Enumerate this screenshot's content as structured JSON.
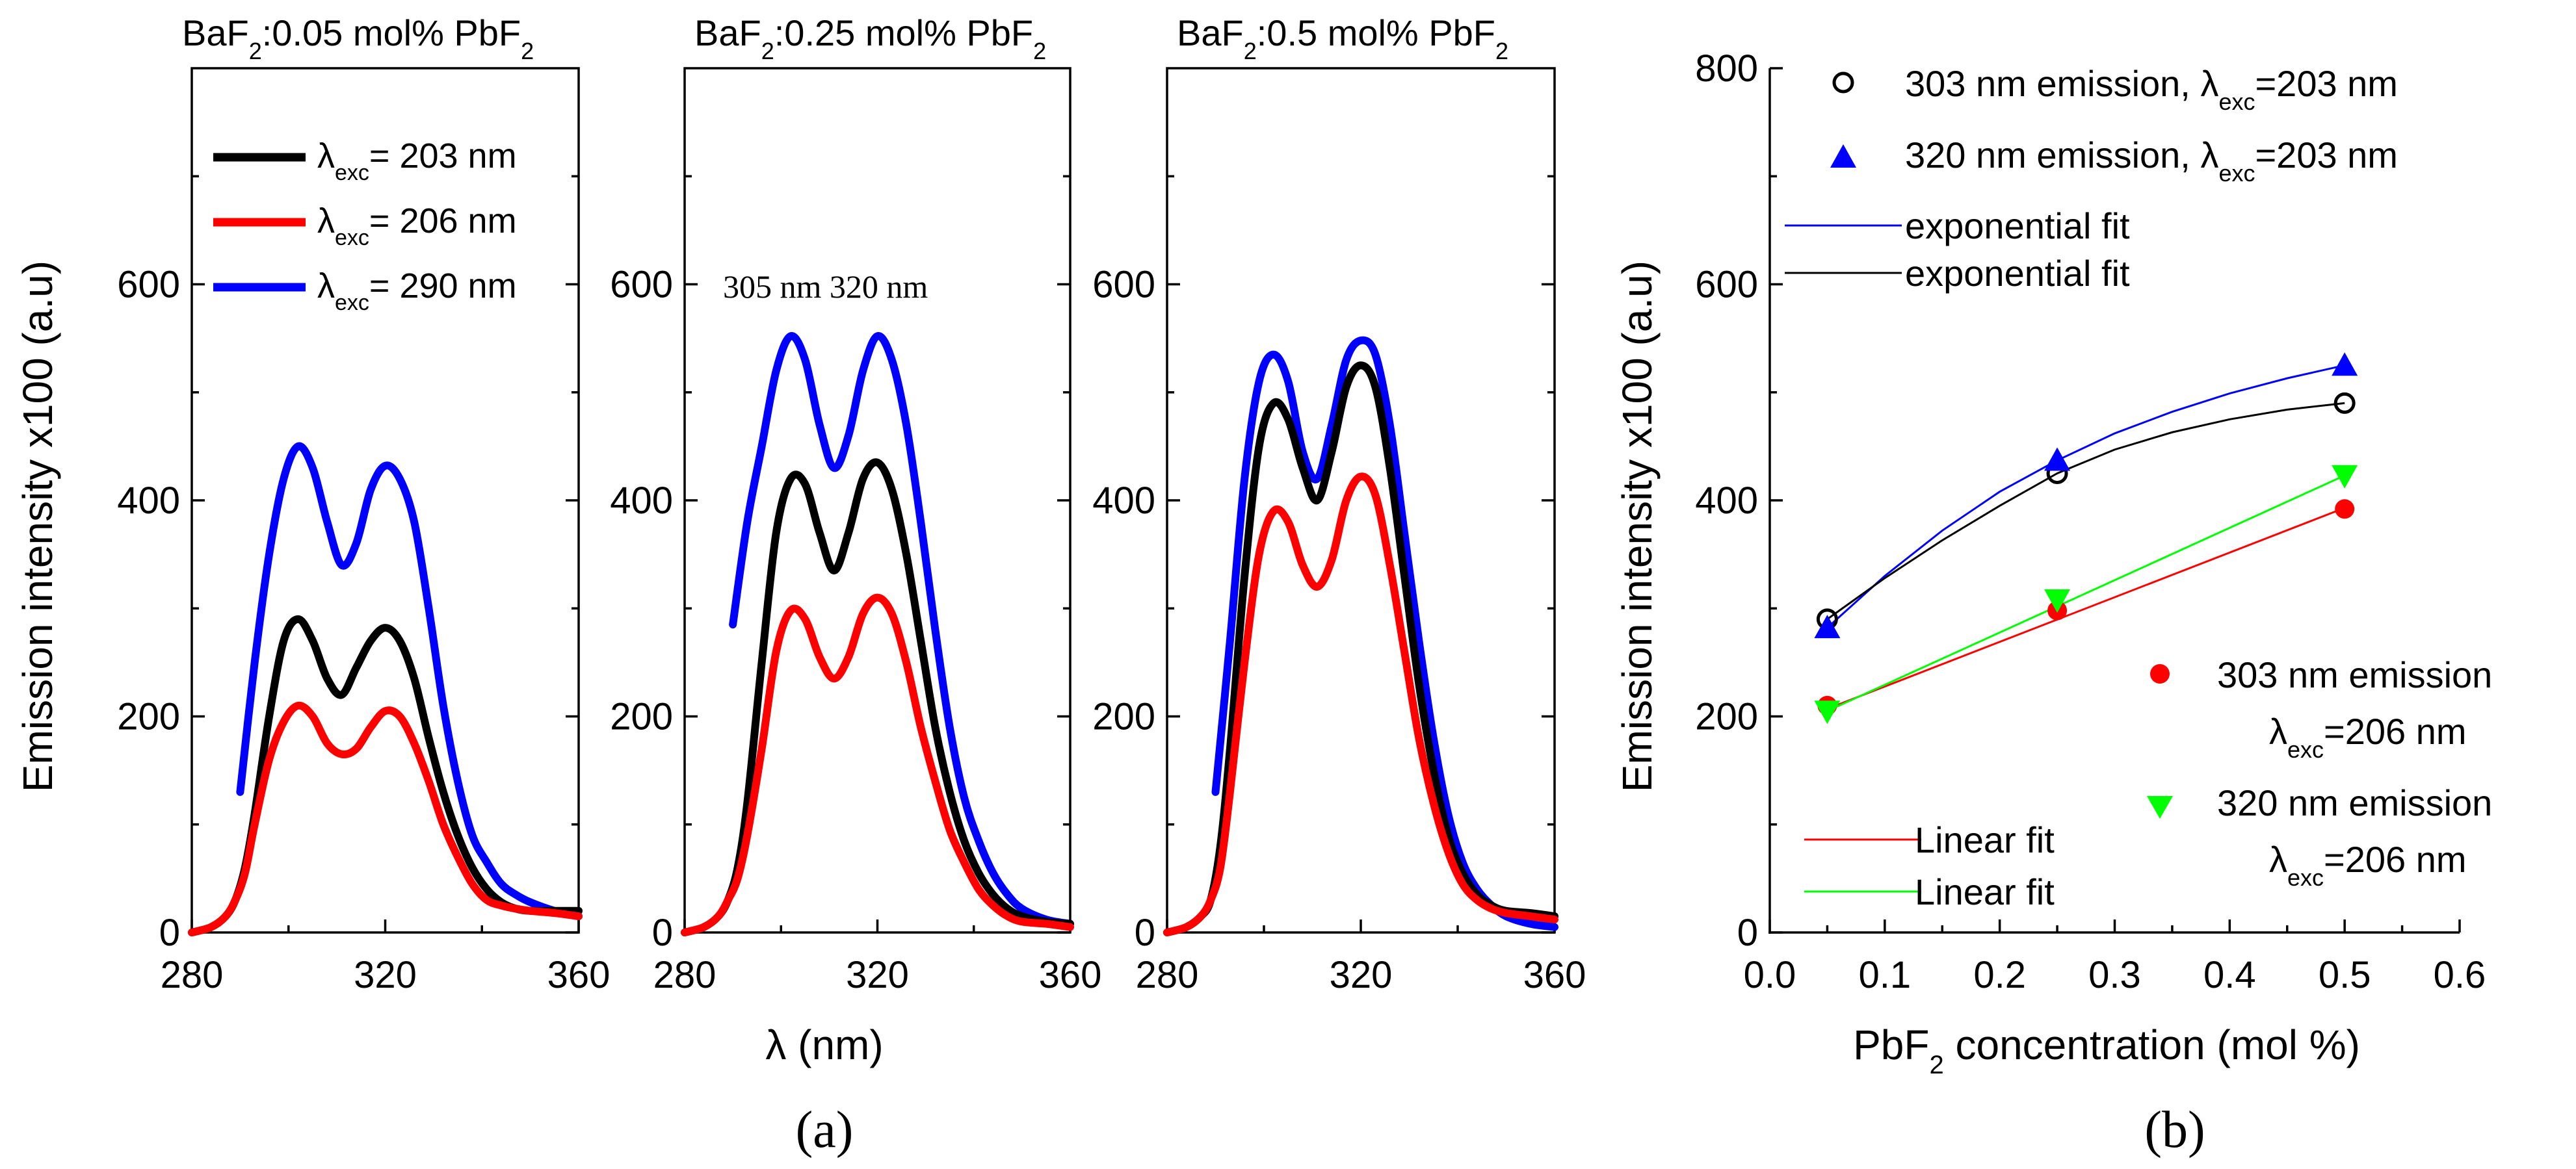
{
  "chart_data": [
    {
      "type": "line",
      "panel": "a",
      "title": "BaF2:0.05 mol% PbF2",
      "title_parts": [
        "BaF",
        "2",
        ":0.05 mol% PbF",
        "2"
      ],
      "xlim": [
        280,
        360
      ],
      "ylim": [
        0,
        800
      ],
      "xticks": [
        280,
        320,
        360
      ],
      "yticks": [
        0,
        200,
        400,
        600
      ],
      "ytick_labels": [
        "0",
        "200",
        "400",
        "600"
      ],
      "ylabel": "Emission intensity x100 (a.u)",
      "legend": [
        {
          "pre": "λ",
          "sub": "exc",
          "post": "= 203 nm",
          "color": "#000000"
        },
        {
          "pre": "λ",
          "sub": "exc",
          "post": "= 206 nm",
          "color": "#ff0000"
        },
        {
          "pre": "λ",
          "sub": "exc",
          "post": "= 290 nm",
          "color": "#0000ff"
        }
      ],
      "series": [
        {
          "name": "λexc = 290 nm",
          "color": "#0000ff",
          "x": [
            290,
            293,
            296,
            299,
            302,
            305,
            308,
            311,
            314,
            317,
            320,
            323,
            326,
            329,
            332,
            335,
            338,
            341,
            344,
            347,
            350,
            355,
            360
          ],
          "y": [
            130,
            250,
            350,
            420,
            450,
            430,
            380,
            340,
            360,
            410,
            432,
            420,
            380,
            300,
            210,
            140,
            90,
            65,
            45,
            35,
            28,
            20,
            15
          ]
        },
        {
          "name": "λexc = 203 nm",
          "color": "#000000",
          "x": [
            280,
            284,
            287,
            289,
            291,
            293,
            296,
            299,
            302,
            305,
            308,
            311,
            314,
            317,
            320,
            323,
            326,
            329,
            332,
            335,
            338,
            341,
            344,
            347,
            350,
            355,
            360
          ],
          "y": [
            0,
            5,
            15,
            30,
            60,
            110,
            200,
            270,
            290,
            270,
            235,
            220,
            245,
            270,
            282,
            270,
            235,
            180,
            130,
            90,
            60,
            40,
            28,
            22,
            20,
            20,
            20
          ]
        },
        {
          "name": "λexc = 206 nm",
          "color": "#ff0000",
          "x": [
            280,
            284,
            287,
            289,
            291,
            293,
            296,
            299,
            302,
            305,
            308,
            311,
            314,
            317,
            320,
            323,
            326,
            329,
            332,
            335,
            338,
            341,
            344,
            347,
            350,
            355,
            360
          ],
          "y": [
            0,
            5,
            15,
            30,
            55,
            100,
            160,
            195,
            210,
            200,
            175,
            165,
            170,
            190,
            205,
            200,
            175,
            140,
            100,
            70,
            45,
            30,
            25,
            22,
            20,
            18,
            15
          ]
        }
      ]
    },
    {
      "type": "line",
      "panel": "a",
      "title": "BaF2:0.25 mol% PbF2",
      "title_parts": [
        "BaF",
        "2",
        ":0.25 mol% PbF",
        "2"
      ],
      "xlim": [
        280,
        360
      ],
      "ylim": [
        0,
        800
      ],
      "xticks": [
        280,
        320,
        360
      ],
      "yticks": [
        0,
        200,
        400,
        600
      ],
      "ytick_labels": [
        "0",
        "200",
        "400",
        "600"
      ],
      "xlabel": "λ (nm)",
      "annotation": "305 nm 320 nm",
      "series": [
        {
          "name": "λexc = 290 nm",
          "color": "#0000ff",
          "x": [
            290,
            293,
            296,
            299,
            302,
            305,
            308,
            311,
            314,
            317,
            320,
            323,
            326,
            329,
            332,
            335,
            338,
            341,
            344,
            347,
            350,
            355,
            360
          ],
          "y": [
            285,
            380,
            450,
            520,
            552,
            530,
            470,
            430,
            460,
            520,
            552,
            530,
            470,
            380,
            280,
            190,
            125,
            85,
            55,
            35,
            22,
            12,
            8
          ]
        },
        {
          "name": "λexc = 203 nm",
          "color": "#000000",
          "x": [
            280,
            284,
            287,
            289,
            291,
            293,
            296,
            299,
            302,
            305,
            308,
            311,
            314,
            317,
            320,
            323,
            326,
            329,
            332,
            335,
            338,
            341,
            344,
            347,
            350,
            355,
            360
          ],
          "y": [
            0,
            5,
            15,
            30,
            60,
            120,
            250,
            370,
            420,
            415,
            370,
            335,
            370,
            420,
            435,
            410,
            350,
            270,
            190,
            130,
            85,
            55,
            35,
            22,
            15,
            10,
            8
          ]
        },
        {
          "name": "λexc = 206 nm",
          "color": "#ff0000",
          "x": [
            280,
            284,
            287,
            289,
            291,
            293,
            296,
            299,
            302,
            305,
            308,
            311,
            314,
            317,
            320,
            323,
            326,
            329,
            332,
            335,
            338,
            341,
            344,
            347,
            350,
            355,
            360
          ],
          "y": [
            0,
            5,
            15,
            30,
            50,
            90,
            170,
            260,
            298,
            290,
            255,
            235,
            255,
            295,
            310,
            295,
            250,
            190,
            140,
            95,
            65,
            40,
            25,
            15,
            10,
            8,
            5
          ]
        }
      ]
    },
    {
      "type": "line",
      "panel": "a",
      "title": "BaF2:0.5 mol% PbF2",
      "title_parts": [
        "BaF",
        "2",
        ":0.5 mol% PbF",
        "2"
      ],
      "xlim": [
        280,
        360
      ],
      "ylim": [
        0,
        800
      ],
      "xticks": [
        280,
        320,
        360
      ],
      "yticks": [
        0,
        200,
        400,
        600
      ],
      "ytick_labels": [
        "0",
        "200",
        "400",
        "600"
      ],
      "series": [
        {
          "name": "λexc = 290 nm",
          "color": "#0000ff",
          "x": [
            290,
            293,
            296,
            299,
            302,
            305,
            308,
            311,
            314,
            317,
            320,
            323,
            326,
            329,
            332,
            335,
            338,
            341,
            344,
            347,
            350,
            355,
            360
          ],
          "y": [
            130,
            270,
            420,
            510,
            535,
            510,
            445,
            420,
            470,
            530,
            548,
            535,
            470,
            370,
            270,
            180,
            110,
            65,
            40,
            25,
            15,
            8,
            5
          ]
        },
        {
          "name": "λexc = 203 nm",
          "color": "#000000",
          "x": [
            280,
            284,
            287,
            289,
            291,
            293,
            296,
            299,
            302,
            305,
            308,
            311,
            314,
            317,
            320,
            323,
            326,
            329,
            332,
            335,
            338,
            341,
            344,
            347,
            350,
            355,
            360
          ],
          "y": [
            0,
            5,
            15,
            30,
            80,
            170,
            330,
            450,
            490,
            475,
            430,
            400,
            445,
            505,
            525,
            505,
            430,
            330,
            230,
            150,
            90,
            55,
            35,
            25,
            20,
            18,
            15
          ]
        },
        {
          "name": "λexc = 206 nm",
          "color": "#ff0000",
          "x": [
            280,
            284,
            287,
            289,
            291,
            293,
            296,
            299,
            302,
            305,
            308,
            311,
            314,
            317,
            320,
            323,
            326,
            329,
            332,
            335,
            338,
            341,
            344,
            347,
            350,
            355,
            360
          ],
          "y": [
            0,
            5,
            15,
            30,
            60,
            130,
            250,
            350,
            390,
            380,
            340,
            320,
            345,
            400,
            422,
            405,
            340,
            260,
            180,
            120,
            75,
            45,
            30,
            22,
            18,
            15,
            12
          ]
        }
      ]
    },
    {
      "type": "scatter",
      "panel": "b",
      "xlabel": "PbF2 concentration (mol %)",
      "xlabel_parts": [
        "PbF",
        "2",
        " concentration (mol %)"
      ],
      "ylabel": "Emission intensity x100 (a.u)",
      "xlim": [
        0.0,
        0.6
      ],
      "ylim": [
        0,
        800
      ],
      "xticks": [
        0.0,
        0.1,
        0.2,
        0.3,
        0.4,
        0.5,
        0.6
      ],
      "xtick_labels": [
        "0.0",
        "0.1",
        "0.2",
        "0.3",
        "0.4",
        "0.5",
        "0.6"
      ],
      "yticks": [
        0,
        200,
        400,
        600,
        800
      ],
      "ytick_labels": [
        "0",
        "200",
        "400",
        "600",
        "800"
      ],
      "legend": [
        {
          "marker": "open-circle",
          "text": "303 nm emission, ",
          "pre": "λ",
          "sub": "exc",
          "post": "=203 nm",
          "color": "#000000"
        },
        {
          "marker": "up-triangle",
          "text": "320 nm emission, ",
          "pre": "λ",
          "sub": "exc",
          "post": "=203 nm",
          "color": "#0000ff"
        },
        {
          "marker": "line",
          "text": "exponential fit",
          "color": "#0000ff"
        },
        {
          "marker": "line",
          "text": "exponential fit",
          "color": "#000000"
        },
        {
          "marker": "filled-circle",
          "text": "303 nm emission",
          "pre": "λ",
          "sub": "exc",
          "post": "=206 nm",
          "color": "#ff0000"
        },
        {
          "marker": "down-triangle",
          "text": "320 nm emission",
          "pre": "λ",
          "sub": "exc",
          "post": "=206 nm",
          "color": "#00ff00"
        },
        {
          "marker": "line",
          "text": "Linear fit",
          "color": "#ff0000"
        },
        {
          "marker": "line",
          "text": "Linear fit",
          "color": "#00ff00"
        }
      ],
      "series": [
        {
          "name": "303 nm emission, λexc=203 nm",
          "marker": "open-circle",
          "color": "#000000",
          "x": [
            0.05,
            0.25,
            0.5
          ],
          "y": [
            290,
            425,
            490
          ]
        },
        {
          "name": "320 nm emission, λexc=203 nm",
          "marker": "up-triangle",
          "color": "#0000ff",
          "x": [
            0.05,
            0.25,
            0.5
          ],
          "y": [
            282,
            437,
            525
          ]
        },
        {
          "name": "303 nm emission λexc=206 nm",
          "marker": "filled-circle",
          "color": "#ff0000",
          "x": [
            0.05,
            0.25,
            0.5
          ],
          "y": [
            210,
            298,
            392
          ]
        },
        {
          "name": "320 nm emission λexc=206 nm",
          "marker": "down-triangle",
          "color": "#00ff00",
          "x": [
            0.05,
            0.25,
            0.5
          ],
          "y": [
            205,
            308,
            423
          ]
        }
      ],
      "fits": [
        {
          "name": "exponential fit (320 nm)",
          "color": "#0000ff",
          "x": [
            0.05,
            0.1,
            0.15,
            0.2,
            0.25,
            0.3,
            0.35,
            0.4,
            0.45,
            0.5
          ],
          "y": [
            282,
            330,
            372,
            408,
            437,
            462,
            482,
            499,
            513,
            525
          ]
        },
        {
          "name": "exponential fit (303 nm)",
          "color": "#000000",
          "x": [
            0.05,
            0.1,
            0.15,
            0.2,
            0.25,
            0.3,
            0.35,
            0.4,
            0.45,
            0.5
          ],
          "y": [
            290,
            328,
            363,
            395,
            425,
            447,
            463,
            475,
            484,
            490
          ]
        },
        {
          "name": "Linear fit (303 nm)",
          "color": "#ff0000",
          "x": [
            0.05,
            0.5
          ],
          "y": [
            207,
            393
          ]
        },
        {
          "name": "Linear fit (320 nm)",
          "color": "#00ff00",
          "x": [
            0.05,
            0.5
          ],
          "y": [
            205,
            423
          ]
        }
      ]
    }
  ],
  "figure_labels": {
    "a": "(a)",
    "b": "(b)"
  }
}
